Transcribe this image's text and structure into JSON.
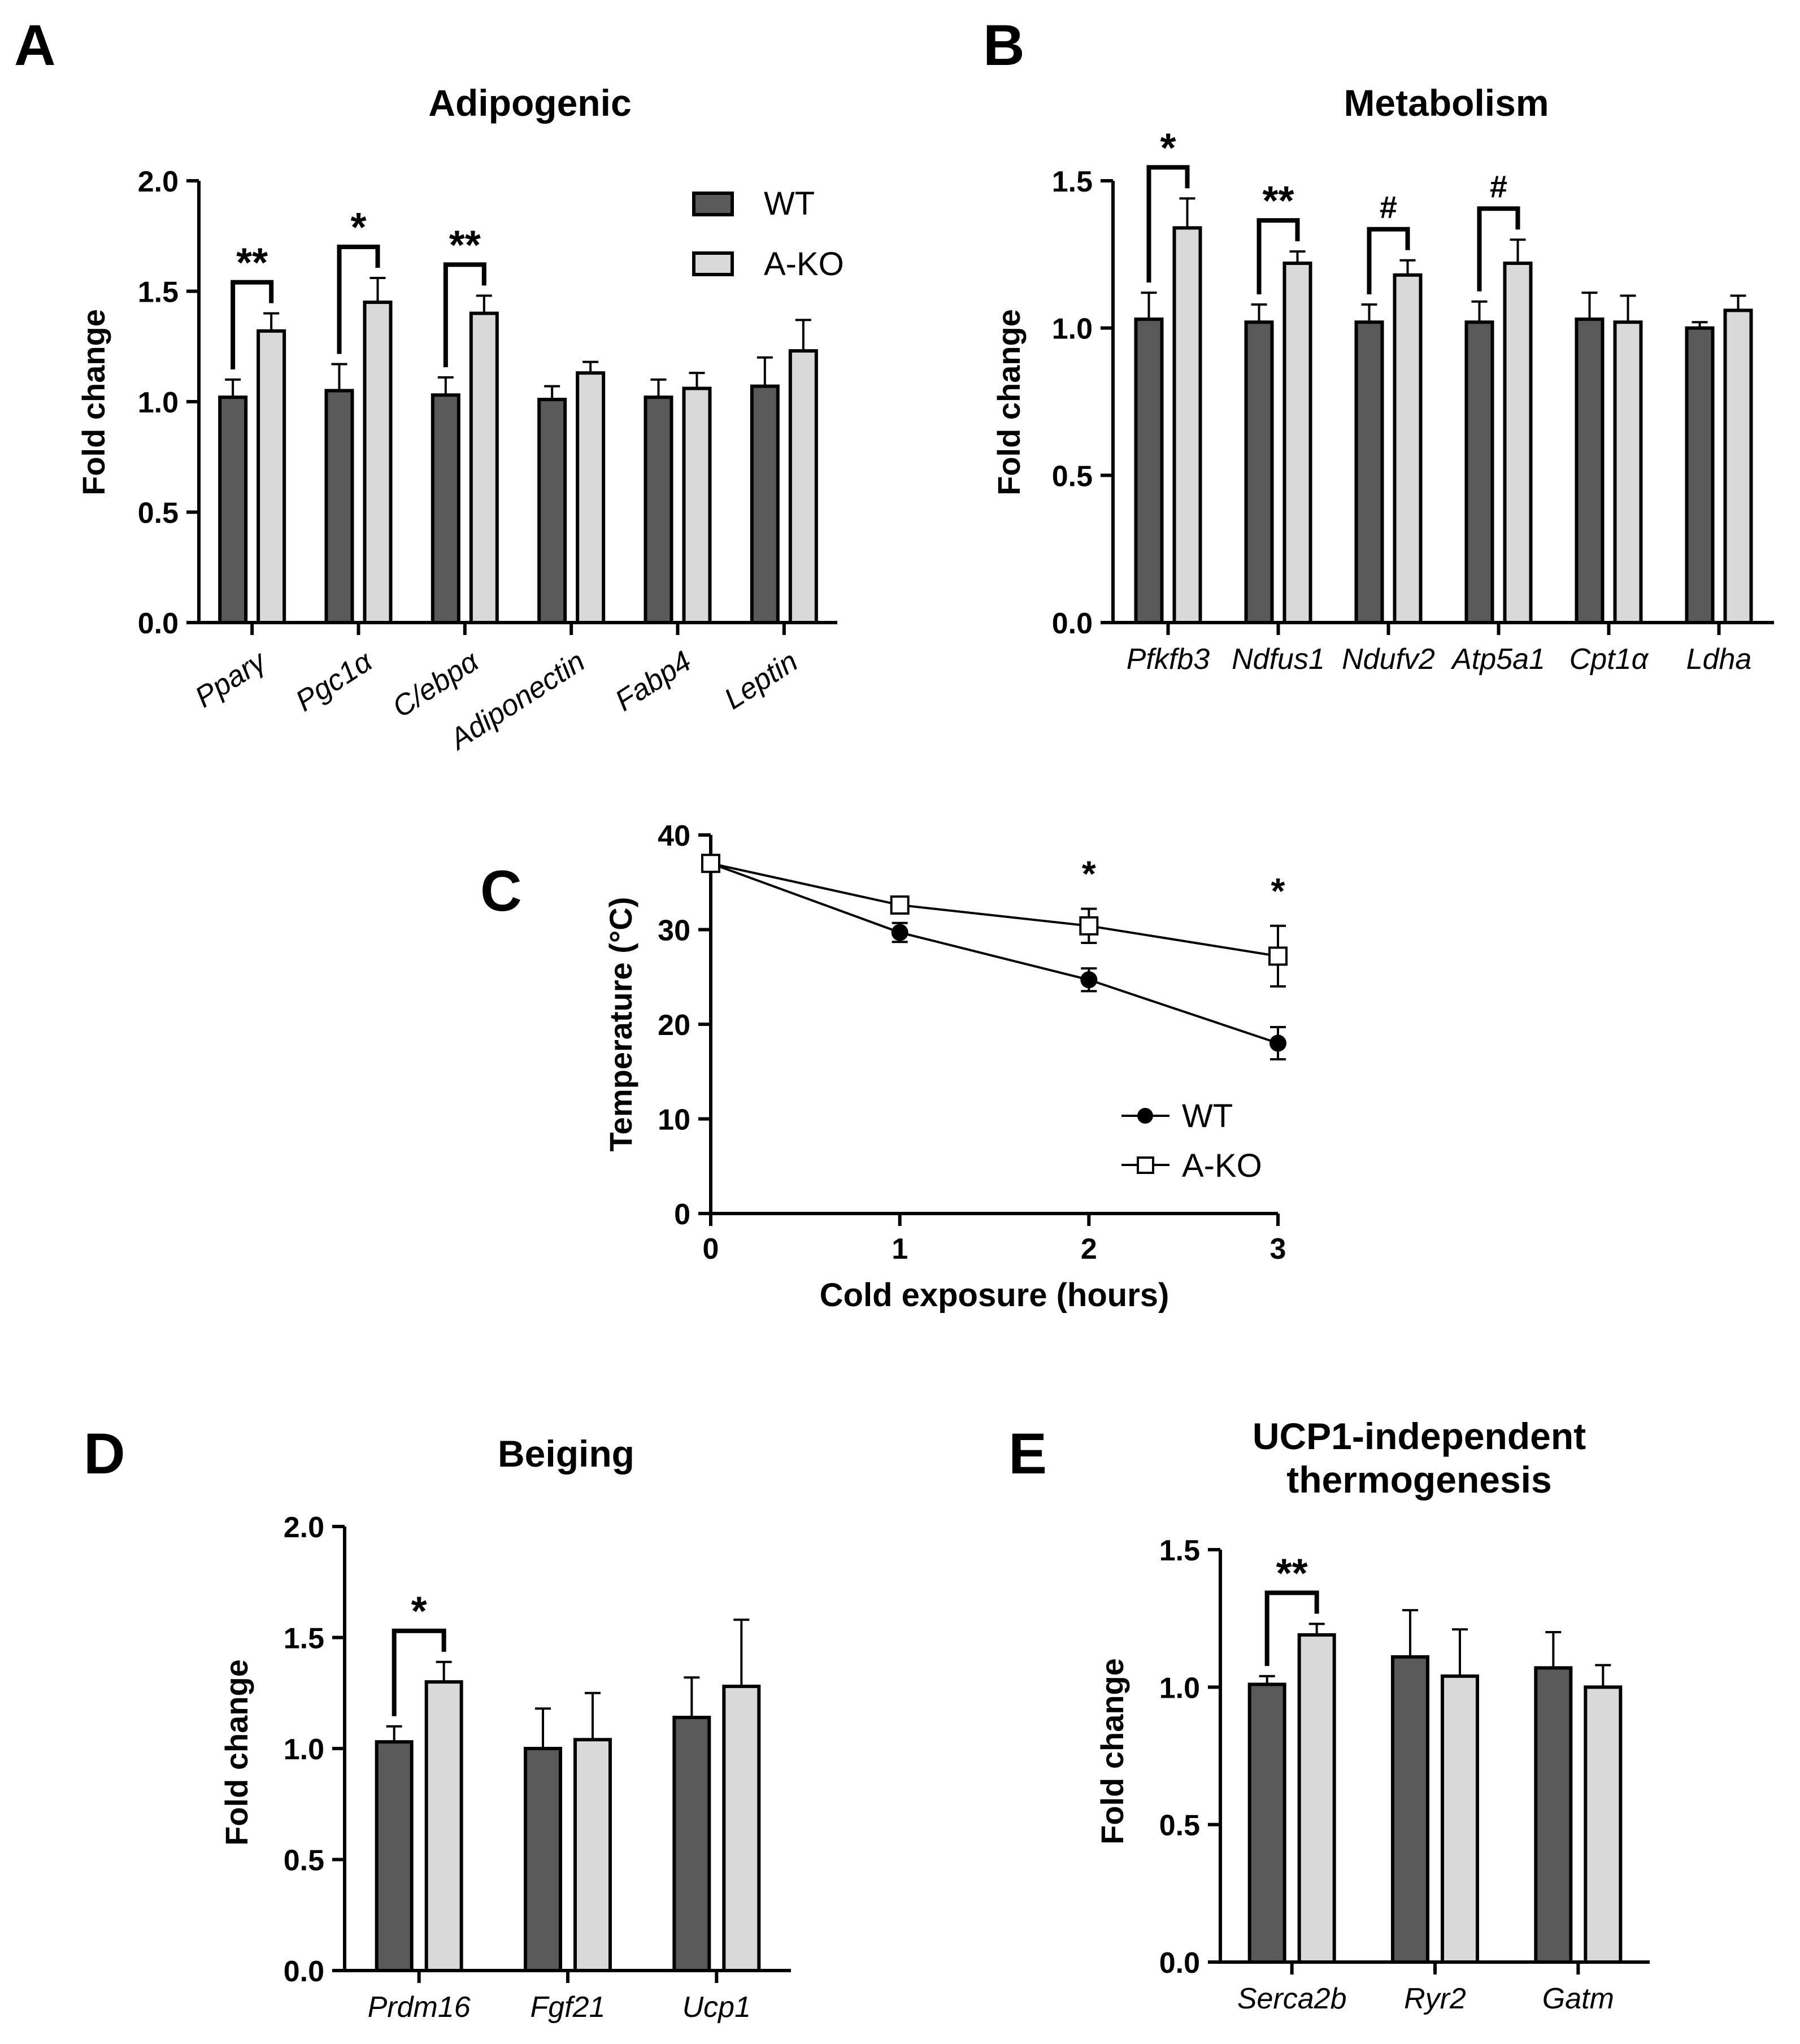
{
  "colors": {
    "wt": "#595959",
    "ako": "#d9d9d9",
    "line": "#000000"
  },
  "chart_data": [
    {
      "panel": "A",
      "type": "bar",
      "title": "Adipogenic",
      "ylabel": "Fold change",
      "ylim": [
        0,
        2.0
      ],
      "yticks": [
        "0.0",
        "0.5",
        "1.0",
        "1.5",
        "2.0"
      ],
      "categories": [
        "Pparγ",
        "Pgc1α",
        "C/ebpα",
        "Adiponectin",
        "Fabp4",
        "Leptin"
      ],
      "series": [
        {
          "name": "WT",
          "values": [
            1.02,
            1.05,
            1.03,
            1.01,
            1.02,
            1.07
          ],
          "errors": [
            0.08,
            0.12,
            0.08,
            0.06,
            0.08,
            0.13
          ]
        },
        {
          "name": "A-KO",
          "values": [
            1.32,
            1.45,
            1.4,
            1.13,
            1.06,
            1.23
          ],
          "errors": [
            0.08,
            0.11,
            0.08,
            0.05,
            0.07,
            0.14
          ]
        }
      ],
      "significance": [
        {
          "category": 0,
          "label": "**"
        },
        {
          "category": 1,
          "label": "*"
        },
        {
          "category": 2,
          "label": "**"
        }
      ],
      "legend": {
        "position": "top-right",
        "entries": [
          "WT",
          "A-KO"
        ]
      }
    },
    {
      "panel": "B",
      "type": "bar",
      "title": "Metabolism",
      "ylabel": "Fold change",
      "ylim": [
        0,
        1.5
      ],
      "yticks": [
        "0.0",
        "0.5",
        "1.0",
        "1.5"
      ],
      "categories": [
        "Pfkfb3",
        "Ndfus1",
        "Ndufv2",
        "Atp5a1",
        "Cpt1α",
        "Ldha"
      ],
      "series": [
        {
          "name": "WT",
          "values": [
            1.03,
            1.02,
            1.02,
            1.02,
            1.03,
            1.0
          ],
          "errors": [
            0.09,
            0.06,
            0.06,
            0.07,
            0.09,
            0.02
          ]
        },
        {
          "name": "A-KO",
          "values": [
            1.34,
            1.22,
            1.18,
            1.22,
            1.02,
            1.06
          ],
          "errors": [
            0.1,
            0.04,
            0.05,
            0.08,
            0.09,
            0.05
          ]
        }
      ],
      "significance": [
        {
          "category": 0,
          "label": "*"
        },
        {
          "category": 1,
          "label": "**"
        },
        {
          "category": 2,
          "label": "#"
        },
        {
          "category": 3,
          "label": "#"
        }
      ]
    },
    {
      "panel": "C",
      "type": "line",
      "xlabel": "Cold exposure (hours)",
      "ylabel": "Temperature (°C)",
      "xlim": [
        0,
        3
      ],
      "ylim": [
        0,
        40
      ],
      "xticks": [
        "0",
        "1",
        "2",
        "3"
      ],
      "yticks": [
        "0",
        "10",
        "20",
        "30",
        "40"
      ],
      "x": [
        0,
        1,
        2,
        3
      ],
      "series": [
        {
          "name": "WT",
          "values": [
            37.0,
            29.7,
            24.7,
            18.0
          ],
          "errors": [
            0.5,
            1.0,
            1.2,
            1.7
          ],
          "marker": "filled-circle"
        },
        {
          "name": "A-KO",
          "values": [
            37.0,
            32.6,
            30.4,
            27.2
          ],
          "errors": [
            0.5,
            0.6,
            1.8,
            3.2
          ],
          "marker": "open-square"
        }
      ],
      "significance": [
        {
          "x": 2,
          "label": "*"
        },
        {
          "x": 3,
          "label": "*"
        }
      ],
      "legend": {
        "position": "bottom-right",
        "entries": [
          "WT",
          "A-KO"
        ]
      }
    },
    {
      "panel": "D",
      "type": "bar",
      "title": "Beiging",
      "ylabel": "Fold change",
      "ylim": [
        0,
        2.0
      ],
      "yticks": [
        "0.0",
        "0.5",
        "1.0",
        "1.5",
        "2.0"
      ],
      "categories": [
        "Prdm16",
        "Fgf21",
        "Ucp1"
      ],
      "series": [
        {
          "name": "WT",
          "values": [
            1.03,
            1.0,
            1.14
          ],
          "errors": [
            0.07,
            0.18,
            0.18
          ]
        },
        {
          "name": "A-KO",
          "values": [
            1.3,
            1.04,
            1.28
          ],
          "errors": [
            0.09,
            0.21,
            0.3
          ]
        }
      ],
      "significance": [
        {
          "category": 0,
          "label": "*"
        }
      ]
    },
    {
      "panel": "E",
      "type": "bar",
      "title": "UCP1-independent thermogenesis",
      "title_lines": [
        "UCP1-independent",
        "thermogenesis"
      ],
      "ylabel": "Fold change",
      "ylim": [
        0,
        1.5
      ],
      "yticks": [
        "0.0",
        "0.5",
        "1.0",
        "1.5"
      ],
      "categories": [
        "Serca2b",
        "Ryr2",
        "Gatm"
      ],
      "series": [
        {
          "name": "WT",
          "values": [
            1.01,
            1.11,
            1.07
          ],
          "errors": [
            0.03,
            0.17,
            0.13
          ]
        },
        {
          "name": "A-KO",
          "values": [
            1.19,
            1.04,
            1.0
          ],
          "errors": [
            0.04,
            0.17,
            0.08
          ]
        }
      ],
      "significance": [
        {
          "category": 0,
          "label": "**"
        }
      ]
    }
  ]
}
